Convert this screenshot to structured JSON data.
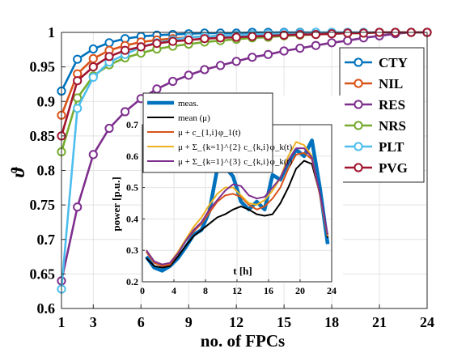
{
  "chart_data": [
    {
      "type": "line",
      "xlabel": "no. of FPCs",
      "ylabel": "ϑ",
      "xlim": [
        1,
        24
      ],
      "ylim": [
        0.6,
        1.0
      ],
      "xticks": [
        1,
        3,
        6,
        9,
        12,
        15,
        18,
        21,
        24
      ],
      "yticks": [
        0.6,
        0.65,
        0.7,
        0.75,
        0.8,
        0.85,
        0.9,
        0.95,
        1
      ],
      "ytick_labels": [
        "0.6",
        "0.65",
        "0.7",
        "0.75",
        "0.8",
        "0.85",
        "0.9",
        "0.95",
        "1"
      ],
      "grid": true,
      "legend_position": "top-right",
      "x": [
        1,
        2,
        3,
        4,
        5,
        6,
        7,
        8,
        9,
        10,
        11,
        12,
        13,
        14,
        15,
        16,
        17,
        18,
        19,
        20,
        21,
        22,
        23,
        24
      ],
      "series": [
        {
          "name": "CTY",
          "color": "#0072BD",
          "values": [
            0.915,
            0.961,
            0.976,
            0.985,
            0.991,
            0.994,
            0.996,
            0.997,
            0.998,
            0.999,
            0.999,
            0.999,
            1.0,
            1.0,
            1.0,
            1.0,
            1.0,
            1.0,
            1.0,
            1.0,
            1.0,
            1.0,
            1.0,
            1.0
          ]
        },
        {
          "name": "NIL",
          "color": "#D95319",
          "values": [
            0.88,
            0.94,
            0.962,
            0.974,
            0.981,
            0.986,
            0.989,
            0.991,
            0.993,
            0.994,
            0.995,
            0.996,
            0.997,
            0.998,
            0.998,
            0.999,
            0.999,
            0.999,
            1.0,
            1.0,
            1.0,
            1.0,
            1.0,
            1.0
          ]
        },
        {
          "name": "RES",
          "color": "#7E2F8E",
          "values": [
            0.64,
            0.747,
            0.823,
            0.861,
            0.885,
            0.904,
            0.918,
            0.929,
            0.938,
            0.946,
            0.952,
            0.958,
            0.964,
            0.968,
            0.973,
            0.977,
            0.981,
            0.985,
            0.988,
            0.992,
            0.995,
            0.998,
            1.0,
            1.0
          ]
        },
        {
          "name": "NRS",
          "color": "#77AC30",
          "values": [
            0.827,
            0.905,
            0.937,
            0.953,
            0.963,
            0.97,
            0.976,
            0.98,
            0.983,
            0.986,
            0.988,
            0.99,
            0.992,
            0.993,
            0.995,
            0.996,
            0.997,
            0.998,
            0.999,
            0.999,
            1.0,
            1.0,
            1.0,
            1.0
          ]
        },
        {
          "name": "PLT",
          "color": "#4DBEEE",
          "values": [
            0.628,
            0.89,
            0.935,
            0.957,
            0.968,
            0.979,
            0.985,
            0.989,
            0.993,
            0.994,
            0.995,
            0.996,
            0.997,
            0.998,
            0.999,
            0.999,
            1.0,
            1.0,
            1.0,
            1.0,
            1.0,
            1.0,
            1.0,
            1.0
          ]
        },
        {
          "name": "PVG",
          "color": "#A2142F",
          "values": [
            0.85,
            0.93,
            0.95,
            0.965,
            0.974,
            0.979,
            0.984,
            0.987,
            0.989,
            0.991,
            0.992,
            0.993,
            0.994,
            0.995,
            0.996,
            0.997,
            0.997,
            0.998,
            0.999,
            0.999,
            1.0,
            1.0,
            1.0,
            1.0
          ]
        }
      ]
    },
    {
      "type": "line",
      "xlabel": "t [h]",
      "ylabel": "power [p.u.]",
      "xlim": [
        0,
        24
      ],
      "ylim": [
        0.2,
        0.7
      ],
      "xticks": [
        0,
        4,
        8,
        12,
        16,
        20,
        24
      ],
      "yticks": [
        0.2,
        0.3,
        0.4,
        0.5,
        0.6,
        0.7
      ],
      "ytick_labels": [
        "0.2",
        "0.3",
        "0.4",
        "0.5",
        "0.6",
        "0.7"
      ],
      "grid": true,
      "legend_position": "top-left",
      "x": [
        0.5,
        1.5,
        2.5,
        3.5,
        4.5,
        5.5,
        6.5,
        7.5,
        8.5,
        9.5,
        10.5,
        11.5,
        12.5,
        13.5,
        14.5,
        15.5,
        16.5,
        17.5,
        18.5,
        19.5,
        20.5,
        21.5,
        22.5,
        23.5
      ],
      "series": [
        {
          "name": "meas.",
          "color": "#0072BD",
          "values": [
            0.28,
            0.245,
            0.235,
            0.25,
            0.275,
            0.31,
            0.35,
            0.365,
            0.425,
            0.56,
            0.565,
            0.535,
            0.455,
            0.43,
            0.455,
            0.43,
            0.54,
            0.525,
            0.58,
            0.62,
            0.6,
            0.65,
            0.5,
            0.32
          ]
        },
        {
          "name": "mean (μ)",
          "color": "#000000",
          "values": [
            0.275,
            0.25,
            0.245,
            0.25,
            0.28,
            0.315,
            0.345,
            0.365,
            0.385,
            0.405,
            0.415,
            0.43,
            0.44,
            0.43,
            0.415,
            0.41,
            0.415,
            0.45,
            0.5,
            0.56,
            0.585,
            0.575,
            0.48,
            0.34
          ]
        },
        {
          "name": "μ + c_{1,i}φ_1(t)",
          "color": "#D95319",
          "values": [
            0.295,
            0.26,
            0.25,
            0.255,
            0.29,
            0.33,
            0.36,
            0.385,
            0.42,
            0.455,
            0.475,
            0.48,
            0.47,
            0.445,
            0.43,
            0.44,
            0.465,
            0.5,
            0.56,
            0.605,
            0.61,
            0.59,
            0.475,
            0.345
          ]
        },
        {
          "name": "μ + Σ_{k=1}^{2} c_{k,i}φ_k(t)",
          "color": "#EDB120",
          "values": [
            0.3,
            0.265,
            0.255,
            0.26,
            0.295,
            0.335,
            0.375,
            0.405,
            0.445,
            0.48,
            0.5,
            0.5,
            0.475,
            0.45,
            0.445,
            0.46,
            0.49,
            0.53,
            0.6,
            0.645,
            0.635,
            0.6,
            0.475,
            0.345
          ]
        },
        {
          "name": "μ + Σ_{k=1}^{3} c_{k,i}φ_k(t)",
          "color": "#7E2F8E",
          "values": [
            0.3,
            0.265,
            0.255,
            0.26,
            0.29,
            0.33,
            0.365,
            0.39,
            0.43,
            0.46,
            0.49,
            0.51,
            0.505,
            0.475,
            0.465,
            0.47,
            0.5,
            0.53,
            0.585,
            0.625,
            0.625,
            0.595,
            0.48,
            0.35
          ]
        }
      ]
    }
  ]
}
